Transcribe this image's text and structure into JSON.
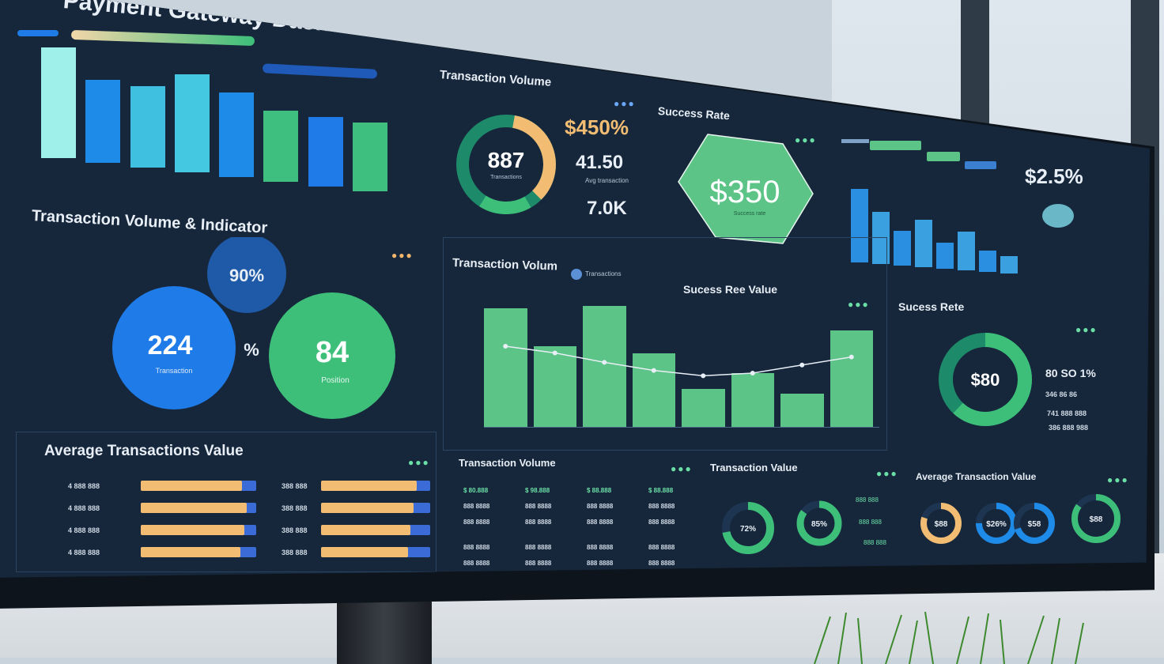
{
  "dashboard": {
    "title": "Payment Gateway Dashboard"
  },
  "bar_chart_top": {
    "chart_data": {
      "type": "bar",
      "values": [
        100,
        72,
        68,
        80,
        65,
        50,
        46,
        42
      ],
      "colors": [
        "#9ff0ea",
        "#1f8be8",
        "#3fc0e0",
        "#44c8e2",
        "#1f8be8",
        "#3fbf7f",
        "#1f7be8",
        "#3fbf7f"
      ]
    }
  },
  "transaction_volume_indicator": {
    "title": "Transaction Volume & Indicator",
    "bubbles": [
      {
        "value": "90%",
        "color": "#1f5aa8"
      },
      {
        "value": "224",
        "label": "Transaction",
        "color": "#1f7be8"
      },
      {
        "value": "84",
        "label": "Position",
        "color": "#3dbf7a"
      }
    ],
    "separator": "%"
  },
  "transaction_volume_donut": {
    "title": "Transaction Volume",
    "center_value": "887",
    "center_label": "Transactions",
    "stats": [
      "$450%",
      "41.50",
      "7.0K"
    ],
    "stat_caption": "Avg transaction"
  },
  "success_rate_hex": {
    "title": "Success Rate",
    "value": "$350",
    "caption": "Success rate"
  },
  "mini_chart": {
    "stat": "$2.5%",
    "chart_data": {
      "type": "bar",
      "values": [
        85,
        60,
        40,
        55,
        30,
        45,
        25,
        20
      ]
    }
  },
  "main_chart": {
    "title": "Transaction Volum",
    "legend": "Transactions",
    "overlay_title": "Sucess Ree Value",
    "chart_data": {
      "type": "bar",
      "values": [
        88,
        60,
        90,
        55,
        28,
        40,
        25,
        72
      ],
      "line": [
        60,
        55,
        48,
        42,
        38,
        40,
        46,
        52
      ]
    }
  },
  "success_rate_donut": {
    "title": "Sucess Rete",
    "center_value": "$80",
    "chart_data": {
      "type": "pie",
      "values": [
        62,
        38
      ],
      "colors": [
        "#3dbf7a",
        "#1d8a6a"
      ]
    },
    "stats": [
      "80 SO 1%",
      "346 86 86",
      "741 888 888",
      "386 888 988"
    ]
  },
  "avg_transactions_value": {
    "title": "Average Transactions Value",
    "rows": [
      {
        "left_label": "4 888 888",
        "left_fill": 0.88,
        "right_label": "388 888",
        "right_fill": 0.88
      },
      {
        "left_label": "4 888 888",
        "left_fill": 0.92,
        "right_label": "388 888",
        "right_fill": 0.85
      },
      {
        "left_label": "4 888 888",
        "left_fill": 0.9,
        "right_label": "388 888",
        "right_fill": 0.82
      },
      {
        "left_label": "4 888 888",
        "left_fill": 0.86,
        "right_label": "388 888",
        "right_fill": 0.8
      }
    ]
  },
  "tx_volume_table": {
    "title": "Transaction Volume",
    "rows": [
      [
        "$ 80.888",
        "$ 98.888",
        "$ 88.888",
        "$ 88.888"
      ],
      [
        "888 8888",
        "888 8888",
        "888 8888",
        "888 8888"
      ],
      [
        "888 8888",
        "888 8888",
        "888 8888",
        "888 8888"
      ],
      [
        "888 8888",
        "888 8888",
        "888 8888",
        "888 8888"
      ],
      [
        "888 8888",
        "888 8888",
        "888 8888",
        "888 8888"
      ]
    ]
  },
  "tx_value_rings": {
    "title": "Transaction Value",
    "rings": [
      {
        "value": "72%",
        "fill": 0.72
      },
      {
        "value": "85%",
        "fill": 0.85
      }
    ],
    "notes": [
      "888 888",
      "888 888",
      "888 888"
    ]
  },
  "avg_tx_value_rings": {
    "title": "Average Transaction Value",
    "rings": [
      {
        "value": "$88",
        "fill": 0.8,
        "color": "#f2bd73"
      },
      {
        "value": "$26%",
        "fill": 0.75,
        "color": "#1f8be8"
      },
      {
        "value": "$58",
        "fill": 0.7,
        "color": "#1f8be8"
      },
      {
        "value": "$88",
        "fill": 0.85,
        "color": "#3dbf7a"
      }
    ]
  },
  "colors": {
    "green": "#3dbf7a",
    "blue": "#1f7be8",
    "orange": "#f2bd73",
    "panel": "#172a40"
  }
}
